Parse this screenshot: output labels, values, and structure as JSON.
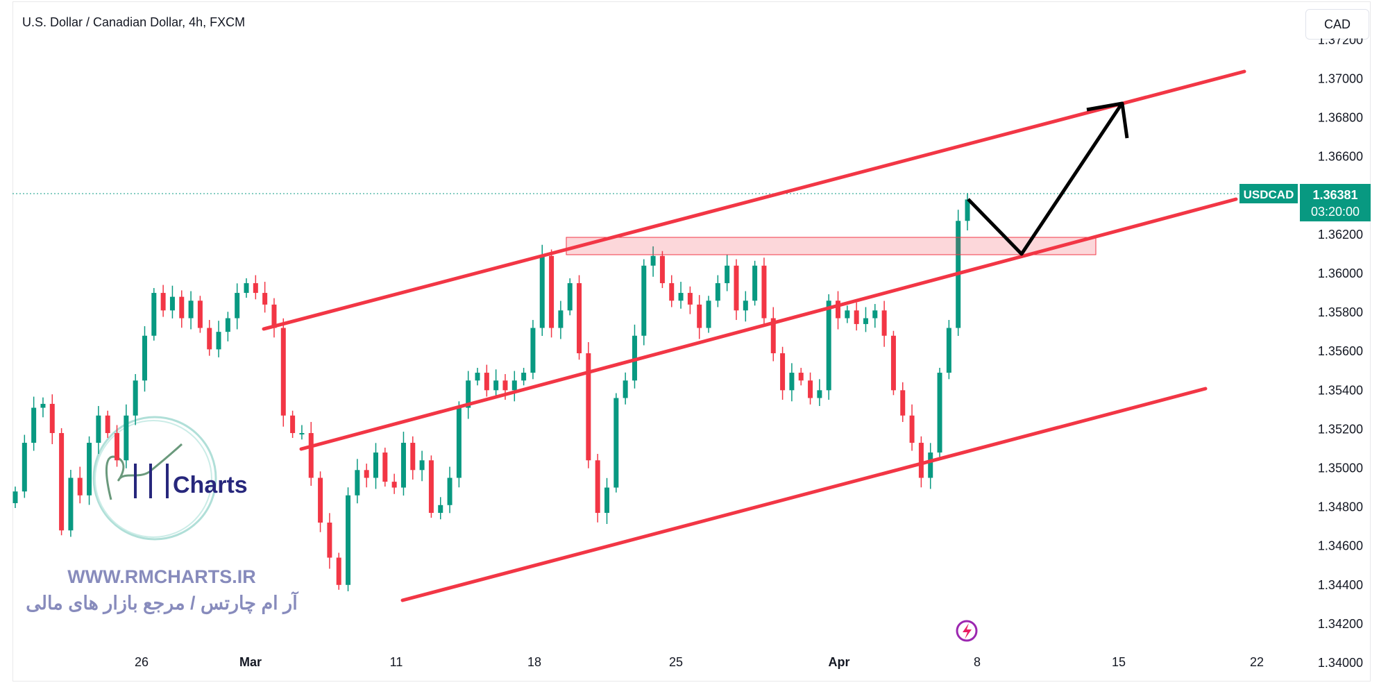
{
  "header": {
    "title": "U.S. Dollar / Canadian Dollar, 4h, FXCM",
    "currency_button": "CAD"
  },
  "price_label": {
    "symbol": "USDCAD",
    "price": "1.36381",
    "countdown": "03:20:00",
    "color": "#089981"
  },
  "watermark": {
    "logo_text": "Charts",
    "url": "WWW.RMCHARTS.IR",
    "tagline": "آر ام چارتس / مرجع بازار های مالی"
  },
  "colors": {
    "up": "#089981",
    "down": "#f23645",
    "drawing": "#f23645",
    "arrow": "#000000"
  },
  "chart_data": {
    "type": "candlestick",
    "title": "U.S. Dollar / Canadian Dollar, 4h, FXCM",
    "ylim": [
      1.3395,
      1.3725
    ],
    "y_ticks": [
      "1.37200",
      "1.37000",
      "1.36800",
      "1.36600",
      "1.36400",
      "1.36200",
      "1.36000",
      "1.35800",
      "1.35600",
      "1.35400",
      "1.35200",
      "1.35000",
      "1.34800",
      "1.34600",
      "1.34400",
      "1.34200",
      "1.34000"
    ],
    "x_ticks": [
      "26",
      "Mar",
      "11",
      "18",
      "25",
      "Apr",
      "8",
      "15",
      "22"
    ],
    "last_price": 1.36381,
    "closes": [
      1.3488,
      1.3513,
      1.3531,
      1.3533,
      1.3518,
      1.3468,
      1.3495,
      1.3486,
      1.3513,
      1.3527,
      1.3518,
      1.3504,
      1.3527,
      1.3545,
      1.3568,
      1.359,
      1.3581,
      1.3588,
      1.3577,
      1.3586,
      1.3572,
      1.3561,
      1.357,
      1.3577,
      1.359,
      1.3595,
      1.359,
      1.3584,
      1.3572,
      1.3527,
      1.3518,
      1.3518,
      1.3495,
      1.3472,
      1.3454,
      1.344,
      1.3486,
      1.3499,
      1.3495,
      1.3508,
      1.3493,
      1.349,
      1.3513,
      1.3499,
      1.3504,
      1.3477,
      1.3481,
      1.3495,
      1.3531,
      1.3545,
      1.3549,
      1.354,
      1.3545,
      1.354,
      1.3545,
      1.3549,
      1.3572,
      1.3609,
      1.3572,
      1.3581,
      1.3595,
      1.3559,
      1.3504,
      1.3477,
      1.349,
      1.3536,
      1.3545,
      1.3568,
      1.3604,
      1.3609,
      1.3595,
      1.3586,
      1.359,
      1.3584,
      1.3572,
      1.3586,
      1.3595,
      1.3604,
      1.3581,
      1.3586,
      1.3604,
      1.3577,
      1.3559,
      1.354,
      1.3549,
      1.3545,
      1.3536,
      1.354,
      1.3586,
      1.3577,
      1.3581,
      1.3574,
      1.3577,
      1.3581,
      1.3568,
      1.354,
      1.3527,
      1.3513,
      1.3495,
      1.3508,
      1.3549,
      1.3572,
      1.3627,
      1.3638
    ],
    "drawings": {
      "channel_upper": [
        1.3568,
        1.3703
      ],
      "channel_middle": [
        1.3508,
        1.3633
      ],
      "channel_lower": [
        1.3422,
        1.3531
      ],
      "resistance_zone": [
        1.3605,
        1.3614
      ]
    }
  }
}
